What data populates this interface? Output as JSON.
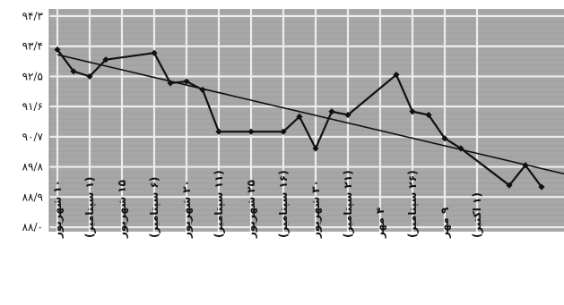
{
  "chart_data": {
    "type": "line",
    "title": "",
    "xlabel": "",
    "ylabel": "",
    "grid": true,
    "legend": "none",
    "ylim": [
      88.0,
      94.3
    ],
    "y_ticks": [
      {
        "value": 94.3,
        "label": "۹۴/۳"
      },
      {
        "value": 93.4,
        "label": "۹۳/۴"
      },
      {
        "value": 92.5,
        "label": "۹۲/۵"
      },
      {
        "value": 91.6,
        "label": "۹۱/۶"
      },
      {
        "value": 90.7,
        "label": "۹۰/۷"
      },
      {
        "value": 89.8,
        "label": "۸۹/۸"
      },
      {
        "value": 88.9,
        "label": "۸۸/۹"
      },
      {
        "value": 88.0,
        "label": "۸۸/۰"
      }
    ],
    "x_ticks": [
      "۱۰ شهریور",
      "(۱ سپتامبر)",
      "۱۵ شهریور",
      "(۶ سپتامبر)",
      "۲۰ شهریور",
      "(۱۱ سپتامبر)",
      "۲۵ شهریور",
      "(۱۶ سپتامبر)",
      "۳۰ شهریور",
      "(۲۱ سپتامبر)",
      "۴ مهر",
      "(۲۶ سپتامبر)",
      "۹ مهر",
      "(۱ اکتبر)"
    ],
    "series": [
      {
        "values": [
          {
            "x": 0.0,
            "y": 93.3
          },
          {
            "x": 0.5,
            "y": 92.65
          },
          {
            "x": 1.0,
            "y": 92.5
          },
          {
            "x": 1.5,
            "y": 93.0
          },
          {
            "x": 3.0,
            "y": 93.2
          },
          {
            "x": 3.5,
            "y": 92.3
          },
          {
            "x": 4.0,
            "y": 92.35
          },
          {
            "x": 4.5,
            "y": 92.1
          },
          {
            "x": 5.0,
            "y": 90.85
          },
          {
            "x": 6.0,
            "y": 90.85
          },
          {
            "x": 7.0,
            "y": 90.85
          },
          {
            "x": 7.5,
            "y": 91.3
          },
          {
            "x": 8.0,
            "y": 90.35
          },
          {
            "x": 8.5,
            "y": 91.45
          },
          {
            "x": 9.0,
            "y": 91.35
          },
          {
            "x": 10.5,
            "y": 92.55
          },
          {
            "x": 11.0,
            "y": 91.45
          },
          {
            "x": 11.5,
            "y": 91.35
          },
          {
            "x": 12.0,
            "y": 90.65
          },
          {
            "x": 12.5,
            "y": 90.35
          },
          {
            "x": 14.0,
            "y": 89.25
          },
          {
            "x": 14.5,
            "y": 89.85
          },
          {
            "x": 15.0,
            "y": 89.2
          }
        ]
      }
    ],
    "trendline": [
      {
        "x": 0.0,
        "y": 93.15
      },
      {
        "x": 15.0,
        "y": 89.75
      }
    ]
  }
}
